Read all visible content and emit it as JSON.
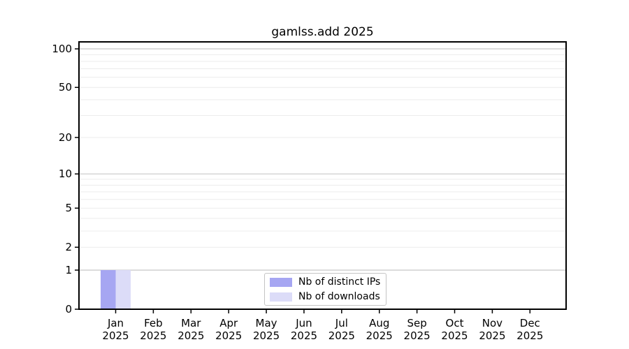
{
  "chart_data": {
    "type": "bar",
    "title": "gamlss.add 2025",
    "categories": [
      "Jan",
      "Feb",
      "Mar",
      "Apr",
      "May",
      "Jun",
      "Jul",
      "Aug",
      "Sep",
      "Oct",
      "Nov",
      "Dec"
    ],
    "category_year": "2025",
    "series": [
      {
        "name": "Nb of distinct IPs",
        "color": "#a6a6f2",
        "values": [
          1,
          0,
          0,
          0,
          0,
          0,
          0,
          0,
          0,
          0,
          0,
          0
        ]
      },
      {
        "name": "Nb of downloads",
        "color": "#dcdcf8",
        "values": [
          1,
          0,
          0,
          0,
          0,
          0,
          0,
          0,
          0,
          0,
          0,
          0
        ]
      }
    ],
    "xlabel": "",
    "ylabel": "",
    "yscale": "log1p",
    "ylim": [
      0,
      113
    ],
    "yticks": [
      0,
      1,
      2,
      5,
      10,
      20,
      50,
      100
    ],
    "grid": {
      "major_values": [
        1,
        10,
        100
      ],
      "minor_values": [
        2,
        3,
        4,
        5,
        6,
        7,
        8,
        9,
        20,
        30,
        40,
        50,
        60,
        70,
        80,
        90
      ],
      "major_color": "#c8c8c8",
      "minor_color": "#ececec"
    },
    "legend": {
      "position": "lower-center-inside",
      "border_color": "#c4c4c4"
    },
    "colors": {
      "spine": "#000000",
      "text": "#000000",
      "background": "#ffffff"
    }
  }
}
